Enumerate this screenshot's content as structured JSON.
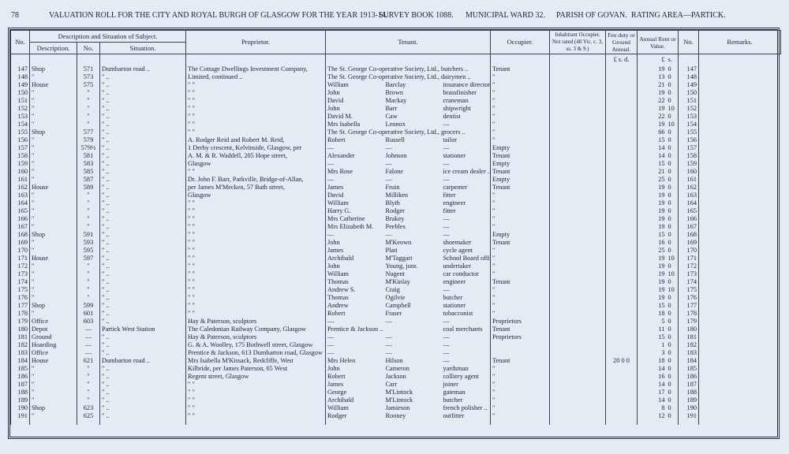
{
  "header": {
    "page": "78",
    "title": "VALUATION ROLL FOR THE CITY AND ROYAL BURGH OF GLASGOW FOR THE YEAR 1913-14.",
    "survey": "SURVEY BOOK 1088.",
    "ward": "MUNICIPAL WARD 32.",
    "parish": "PARISH OF GOVAN.",
    "area": "RATING AREA—PARTICK."
  },
  "columns": {
    "no": "No.",
    "subject": "Description and Situation of Subject.",
    "description": "Description.",
    "street_no": "No.",
    "situation": "Situation.",
    "proprietor": "Proprietor.",
    "tenant": "Tenant.",
    "occupier": "Occupier.",
    "inhabitant": "Inhabitant Occupier. Not rated (48 Vic. c. 3, ss. 3 & 9.)",
    "feu": "Feu duty or Ground Annual.",
    "rent": "Annual Rent or Value.",
    "no_right": "No.",
    "remarks": "Remarks.",
    "feu_units": "£ s. d.",
    "rent_pound": "£",
    "rent_shilling": "s."
  },
  "table": {
    "rows": [
      [
        "147",
        "Shop",
        "571",
        "Dumbarton road ..",
        "The Cottage Dwellings Investment Company,",
        "The St. George Co-operative Society, Ltd., butchers ..",
        null,
        null,
        "Tenant",
        null,
        "19",
        "0",
        "147"
      ],
      [
        "148",
        "″",
        "573",
        "″ ..",
        "Limited, continued ..",
        "The St. George Co-operative Society, Ltd., dairymen ..",
        null,
        null,
        "″",
        null,
        "13",
        "0",
        "148"
      ],
      [
        "149",
        "House",
        "575",
        "″ ..",
        "″ ″",
        "William",
        "Barclay",
        "insurance director",
        "″",
        null,
        "21",
        "0",
        "149"
      ],
      [
        "150",
        "″",
        "″",
        "″ ..",
        "″ ″",
        "John",
        "Brown",
        "brassfinisher",
        "″",
        null,
        "19",
        "0",
        "150"
      ],
      [
        "151",
        "″",
        "″",
        "″ ..",
        "″ ″",
        "David",
        "Mackay",
        "craneman",
        "″",
        null,
        "22",
        "0",
        "151"
      ],
      [
        "152",
        "″",
        "″",
        "″ ..",
        "″ ″",
        "John",
        "Barr",
        "shipwright",
        "″",
        null,
        "19",
        "10",
        "152"
      ],
      [
        "153",
        "″",
        "″",
        "″ ..",
        "″ ″",
        "David M.",
        "Caw",
        "dentist",
        "″",
        null,
        "22",
        "0",
        "153"
      ],
      [
        "154",
        "″",
        "″",
        "″ ..",
        "″ ″",
        "Mrs Isabella",
        "Lennox",
        "—",
        "″",
        null,
        "19",
        "10",
        "154"
      ],
      [
        "155",
        "Shop",
        "577",
        "″ ..",
        "″ ″",
        "The St. George Co-operative Society, Ltd., grocers ..",
        null,
        null,
        "″",
        null,
        "66",
        "0",
        "155"
      ],
      [
        "156",
        "″",
        "579",
        "″ ..",
        "A. Rodger Reid and Robert M. Reid,",
        "Robert",
        "Russell",
        "tailor",
        "″",
        null,
        "15",
        "0",
        "156"
      ],
      [
        "157",
        "″",
        "579½",
        "″ ..",
        "1 Derby crescent, Kelvinside, Glasgow, per",
        "—",
        "—",
        "—",
        "Empty",
        null,
        "14",
        "0",
        "157"
      ],
      [
        "158",
        "″",
        "581",
        "″ ..",
        "A. M. & R. Waddell, 205 Hope street,",
        "Alexander",
        "Johnson",
        "stationer",
        "Tenant",
        null,
        "14",
        "0",
        "158"
      ],
      [
        "159",
        "″",
        "583",
        "″ ..",
        "Glasgow",
        "—",
        "—",
        "—",
        "Empty",
        null,
        "15",
        "0",
        "159"
      ],
      [
        "160",
        "″",
        "585",
        "″ ..",
        "″ ″",
        "Mrs Rose",
        "Falone",
        "ice cream dealer ..",
        "Tenant",
        null,
        "21",
        "0",
        "160"
      ],
      [
        "161",
        "″",
        "587",
        "″ ..",
        "Dr. John F. Barr, Parkville, Bridge-of-Allan,",
        "—",
        "—",
        "—",
        "Empty",
        null,
        "25",
        "0",
        "161"
      ],
      [
        "162",
        "House",
        "589",
        "″ ..",
        "per James M'Mecken, 57 Bath street,",
        "James",
        "Fruin",
        "carpenter",
        "Tenant",
        null,
        "19",
        "0",
        "162"
      ],
      [
        "163",
        "″",
        "″",
        "″ ..",
        "Glasgow",
        "David",
        "Milliken",
        "fitter",
        "″",
        null,
        "19",
        "0",
        "163"
      ],
      [
        "164",
        "″",
        "″",
        "″ ..",
        "″ ″",
        "William",
        "Blyth",
        "engineer",
        "″",
        null,
        "19",
        "0",
        "164"
      ],
      [
        "165",
        "″",
        "″",
        "″ ..",
        "″ ″",
        "Harry G.",
        "Rodger",
        "fitter",
        "″",
        null,
        "19",
        "0",
        "165"
      ],
      [
        "166",
        "″",
        "″",
        "″ ..",
        "″ ″",
        "Mrs Catherine",
        "Brakey",
        "—",
        "″",
        null,
        "19",
        "0",
        "166"
      ],
      [
        "167",
        "″",
        "″",
        "″ ..",
        "″ ″",
        "Mrs Elizabeth M.",
        "Peebles",
        "—",
        "″",
        null,
        "19",
        "0",
        "167"
      ],
      [
        "168",
        "Shop",
        "591",
        "″ ..",
        "″ ″",
        "—",
        "—",
        "—",
        "Empty",
        null,
        "15",
        "0",
        "168"
      ],
      [
        "169",
        "″",
        "593",
        "″ ..",
        "″ ″",
        "John",
        "M'Keown",
        "shoemaker",
        "Tenant",
        null,
        "16",
        "0",
        "169"
      ],
      [
        "170",
        "″",
        "595",
        "″ ..",
        "″ ″",
        "James",
        "Platt",
        "cycle agent",
        "″",
        null,
        "25",
        "0",
        "170"
      ],
      [
        "171",
        "House",
        "597",
        "″ ..",
        "″ ″",
        "Archibald",
        "M'Taggart",
        "School Board officer",
        "″",
        null,
        "19",
        "10",
        "171"
      ],
      [
        "172",
        "″",
        "″",
        "″ ..",
        "″ ″",
        "John",
        "Young, junr.",
        "undertaker",
        "″",
        null,
        "19",
        "0",
        "172"
      ],
      [
        "173",
        "″",
        "″",
        "″ ..",
        "″ ″",
        "William",
        "Nugent",
        "car conductor",
        "″",
        null,
        "19",
        "10",
        "173"
      ],
      [
        "174",
        "″",
        "″",
        "″ ..",
        "″ ″",
        "Thomas",
        "M'Kinlay",
        "engineer",
        "Tenant",
        null,
        "19",
        "0",
        "174"
      ],
      [
        "175",
        "″",
        "″",
        "″ ..",
        "″ ″",
        "Andrew S.",
        "Craig",
        "—",
        "″",
        null,
        "19",
        "10",
        "175"
      ],
      [
        "176",
        "″",
        "″",
        "″ ..",
        "″ ″",
        "Thomas",
        "Ogilvie",
        "butcher",
        "″",
        null,
        "19",
        "0",
        "176"
      ],
      [
        "177",
        "Shop",
        "599",
        "″ ..",
        "″ ″",
        "Andrew",
        "Campbell",
        "stationer",
        "″",
        null,
        "15",
        "0",
        "177"
      ],
      [
        "178",
        "″",
        "601",
        "″ ..",
        "″ ″",
        "Robert",
        "Fraser",
        "tobacconist",
        "″",
        null,
        "18",
        "0",
        "178"
      ],
      [
        "179",
        "Office",
        "603",
        "″ ..",
        "Hay & Paterson, sculptors",
        "—",
        "—",
        "—",
        "Proprietors",
        null,
        "5",
        "0",
        "179"
      ],
      [
        "180",
        "Depot",
        "—",
        "Partick West Station",
        "The Caledonian Railway Company, Glasgow",
        "Prentice & Jackson ..",
        null,
        "coal merchants",
        "Tenant",
        null,
        "11",
        "0",
        "180"
      ],
      [
        "181",
        "Ground",
        "—",
        "″ ..",
        "Hay & Paterson, sculptors",
        "—",
        "—",
        "—",
        "Proprietors",
        null,
        "15",
        "0",
        "181"
      ],
      [
        "182",
        "Hoarding",
        "—",
        "″ ..",
        "G. & A. Woolley, 175 Bothwell street, Glasgow",
        "—",
        "—",
        "—",
        null,
        null,
        "1",
        "0",
        "182"
      ],
      [
        "183",
        "Office",
        "—",
        "″ ..",
        "Prentice & Jackson, 613 Dumbarton road, Glasgow",
        "—",
        "—",
        "—",
        null,
        null,
        "3",
        "0",
        "183"
      ],
      [
        "184",
        "House",
        "621",
        "Dumbarton road ..",
        "Mrs Isabella M'Kissack, Redcliffe, West",
        "Mrs Helen",
        "Hilson",
        "—",
        "Tenant",
        "20  0  0",
        "18",
        "0",
        "184"
      ],
      [
        "185",
        "″",
        "″",
        "″ ..",
        "Kilbride, per James Paterson, 65 West",
        "John",
        "Cameron",
        "yardsman",
        "″",
        null,
        "14",
        "0",
        "185"
      ],
      [
        "186",
        "″",
        "″",
        "″ ..",
        "Regent street, Glasgow",
        "Robert",
        "Jackson",
        "colliery agent",
        "″",
        null,
        "16",
        "0",
        "186"
      ],
      [
        "187",
        "″",
        "″",
        "″ ..",
        "″ ″",
        "James",
        "Carr",
        "joiner",
        "″",
        null,
        "14",
        "0",
        "187"
      ],
      [
        "188",
        "″",
        "″",
        "″ ..",
        "″ ″",
        "George",
        "M'Lintock",
        "gateman",
        "″",
        null,
        "17",
        "0",
        "188"
      ],
      [
        "189",
        "″",
        "″",
        "″ ..",
        "″ ″",
        "Archibald",
        "M'Lintock",
        "butcher",
        "″",
        null,
        "14",
        "0",
        "189"
      ],
      [
        "190",
        "Shop",
        "623",
        "″ ..",
        "″ ″",
        "William",
        "Jamieson",
        "french polisher ..",
        "″",
        null,
        "8",
        "0",
        "190"
      ],
      [
        "191",
        "″",
        "625",
        "″ ..",
        "″ ″",
        "Rodger",
        "Rooney",
        "outfitter",
        "″",
        null,
        "12",
        "0",
        "191"
      ]
    ]
  }
}
